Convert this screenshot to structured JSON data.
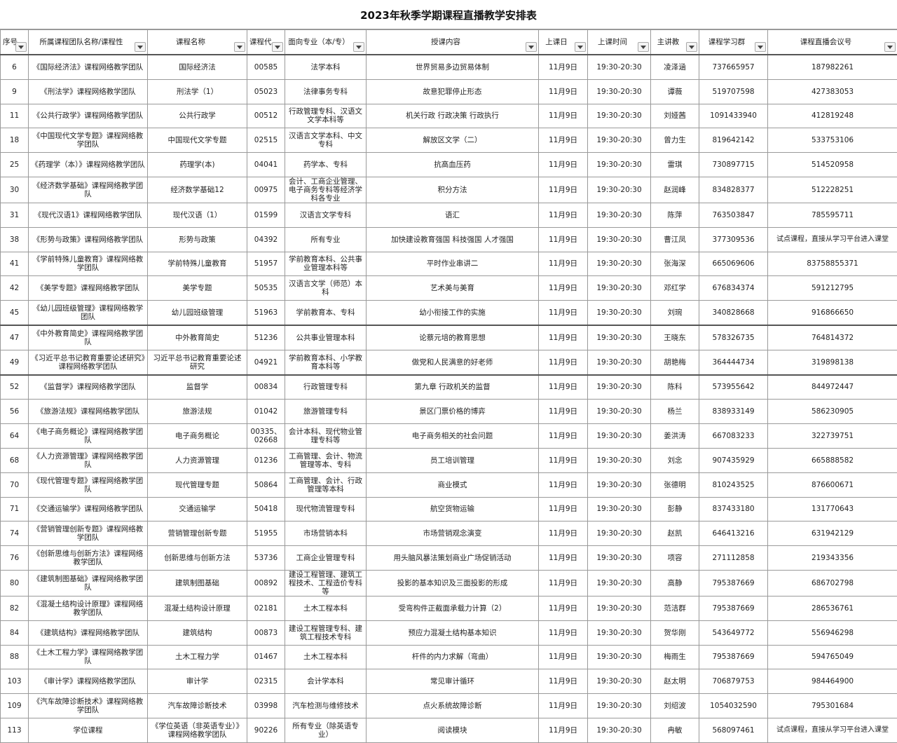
{
  "header": {
    "title": "2023年秋季学期课程直播教学安排表"
  },
  "table": {
    "columns": [
      "序号",
      "所属课程团队名称/课程性",
      "课程名称",
      "课程代",
      "面向专业（本/专）",
      "授课内容",
      "上课日",
      "上课时间",
      "主讲教",
      "课程学习群",
      "课程直播会议号"
    ],
    "rows": [
      [
        "6",
        "《国际经济法》课程网络教学团队",
        "国际经济法",
        "00585",
        "法学本科",
        "世界贸易多边贸易体制",
        "11月9日",
        "19:30-20:30",
        "凌泽涵",
        "737665957",
        "187982261"
      ],
      [
        "9",
        "《刑法学》课程网络教学团队",
        "刑法学（1）",
        "05023",
        "法律事务专科",
        "故意犯罪停止形态",
        "11月9日",
        "19:30-20:30",
        "谭薇",
        "519707598",
        "427383053"
      ],
      [
        "11",
        "《公共行政学》课程网络教学团队",
        "公共行政学",
        "00512",
        "行政管理专科、汉语文文学本科等",
        "机关行政 行政决策 行政执行",
        "11月9日",
        "19:30-20:30",
        "刘娅茜",
        "1091433940",
        "412819248"
      ],
      [
        "18",
        "《中国现代文学专题》课程网络教学团队",
        "中国现代文学专题",
        "02515",
        "汉语言文学本科、中文专科",
        "解放区文学（二）",
        "11月9日",
        "19:30-20:30",
        "曾力生",
        "819642142",
        "533753106"
      ],
      [
        "25",
        "《药理学（本）》课程网络教学团队",
        "药理学(本)",
        "04041",
        "药学本、专科",
        "抗高血压药",
        "11月9日",
        "19:30-20:30",
        "雷琪",
        "730897715",
        "514520958"
      ],
      [
        "30",
        "《经济数学基础》课程网络教学团队",
        "经济数学基础12",
        "00975",
        "会计、工商企业管理、电子商务专科等经济学科各专业",
        "积分方法",
        "11月9日",
        "19:30-20:30",
        "赵润峰",
        "834828377",
        "512228251"
      ],
      [
        "31",
        "《现代汉语1》课程网络教学团队",
        "现代汉语（1）",
        "01599",
        "汉语言文学专科",
        "语汇",
        "11月9日",
        "19:30-20:30",
        "陈萍",
        "763503847",
        "785595711"
      ],
      [
        "38",
        "《形势与政策》课程网络教学团队",
        "形势与政策",
        "04392",
        "所有专业",
        "加快建设教育强国 科技强国 人才强国",
        "11月9日",
        "19:30-20:30",
        "曹江凤",
        "377309536",
        "试点课程，直接从学习平台进入课堂"
      ],
      [
        "41",
        "《学前特殊儿童教育》课程网络教学团队",
        "学前特殊儿童教育",
        "51957",
        "学前教育本科、公共事业管理本科等",
        "平时作业串讲二",
        "11月9日",
        "19:30-20:30",
        "张海深",
        "665069606",
        "83758855371"
      ],
      [
        "42",
        "《美学专题》课程网络教学团队",
        "美学专题",
        "50535",
        "汉语言文学（师范）本科",
        "艺术美与美育",
        "11月9日",
        "19:30-20:30",
        "邓红学",
        "676834374",
        "591212795"
      ],
      [
        "45",
        "《幼儿园班级管理》课程网络教学团队",
        "幼儿园班级管理",
        "51963",
        "学前教育本、专科",
        "幼小衔接工作的实施",
        "11月9日",
        "19:30-20:30",
        "刘琬",
        "340828668",
        "916866650"
      ],
      [
        "47",
        "《中外教育简史》课程网络教学团队",
        "中外教育简史",
        "51236",
        "公共事业管理本科",
        "论蔡元培的教育思想",
        "11月9日",
        "19:30-20:30",
        "王晓东",
        "578326735",
        "764814372"
      ],
      [
        "49",
        "《习近平总书记教育重要论述研究》课程网络教学团队",
        "习近平总书记教育重要论述研究",
        "04921",
        "学前教育本科、小学教育本科等",
        "做党和人民满意的好老师",
        "11月9日",
        "19:30-20:30",
        "胡艳梅",
        "364444734",
        "319898138"
      ],
      [
        "52",
        "《监督学》课程网络教学团队",
        "监督学",
        "00834",
        "行政管理专科",
        "第九章 行政机关的监督",
        "11月9日",
        "19:30-20:30",
        "陈科",
        "573955642",
        "844972447"
      ],
      [
        "56",
        "《旅游法规》课程网络教学团队",
        "旅游法规",
        "01042",
        "旅游管理专科",
        "景区门票价格的博弈",
        "11月9日",
        "19:30-20:30",
        "杨兰",
        "838933149",
        "586230905"
      ],
      [
        "64",
        "《电子商务概论》课程网络教学团队",
        "电子商务概论",
        "00335、02668",
        "会计本科、现代物业管理专科等",
        "电子商务相关的社会问题",
        "11月9日",
        "19:30-20:30",
        "姜洪涛",
        "667083233",
        "322739751"
      ],
      [
        "68",
        "《人力资源管理》课程网络教学团队",
        "人力资源管理",
        "01236",
        "工商管理、会计、物流管理等本、专科",
        "员工培训管理",
        "11月9日",
        "19:30-20:30",
        "刘念",
        "907435929",
        "665888582"
      ],
      [
        "70",
        "《现代管理专题》课程网络教学团队",
        "现代管理专题",
        "50864",
        "工商管理、会计、行政管理等本科",
        "商业模式",
        "11月9日",
        "19:30-20:30",
        "张德明",
        "810243525",
        "876600671"
      ],
      [
        "71",
        "《交通运输学》课程网络教学团队",
        "交通运输学",
        "50418",
        "现代物流管理专科",
        "航空货物运输",
        "11月9日",
        "19:30-20:30",
        "彭静",
        "837433180",
        "131770643"
      ],
      [
        "74",
        "《营销管理创新专题》课程网络教学团队",
        "营销管理创新专题",
        "51955",
        "市场营销本科",
        "市场营销观念演变",
        "11月9日",
        "19:30-20:30",
        "赵凯",
        "646413216",
        "631942129"
      ],
      [
        "76",
        "《创新思维与创新方法》课程网络教学团队",
        "创新思维与创新方法",
        "53736",
        "工商企业管理专科",
        "用头脑风暴法策划商业广场促销活动",
        "11月9日",
        "19:30-20:30",
        "项容",
        "271112858",
        "219343356"
      ],
      [
        "80",
        "《建筑制图基础》课程网络教学团队",
        "建筑制图基础",
        "00892",
        "建设工程管理、建筑工程技术、工程造价专科等",
        "投影的基本知识及三面投影的形成",
        "11月9日",
        "19:30-20:30",
        "高静",
        "795387669",
        "686702798"
      ],
      [
        "82",
        "《混凝土结构设计原理》课程网络教学团队",
        "混凝土结构设计原理",
        "02181",
        "土木工程本科",
        "受弯构件正截面承载力计算（2）",
        "11月9日",
        "19:30-20:30",
        "范洁群",
        "795387669",
        "286536761"
      ],
      [
        "84",
        "《建筑结构》课程网络教学团队",
        "建筑结构",
        "00873",
        "建设工程管理专科、建筑工程技术专科",
        "预应力混凝土结构基本知识",
        "11月9日",
        "19:30-20:30",
        "贺华刚",
        "543649772",
        "556946298"
      ],
      [
        "88",
        "《土木工程力学》课程网络教学团队",
        "土木工程力学",
        "01467",
        "土木工程本科",
        "杆件的内力求解（弯曲）",
        "11月9日",
        "19:30-20:30",
        "梅雨生",
        "795387669",
        "594765049"
      ],
      [
        "103",
        "《审计学》课程网络教学团队",
        "审计学",
        "02315",
        "会计学本科",
        "常见审计循环",
        "11月9日",
        "19:30-20:30",
        "赵太明",
        "706879753",
        "984464900"
      ],
      [
        "109",
        "《汽车故障诊断技术》课程网络教学团队",
        "汽车故障诊断技术",
        "03998",
        "汽车检测与维修技术",
        "点火系统故障诊断",
        "11月9日",
        "19:30-20:30",
        "刘绍波",
        "1054032590",
        "795301684"
      ],
      [
        "113",
        "学位课程",
        "《学位英语（非英语专业）》课程网络教学团队",
        "90226",
        "所有专业（除英语专业）",
        "阅读模块",
        "11月9日",
        "19:30-20:30",
        "冉敏",
        "568097461",
        "试点课程，直接从学习平台进入课堂"
      ]
    ]
  }
}
